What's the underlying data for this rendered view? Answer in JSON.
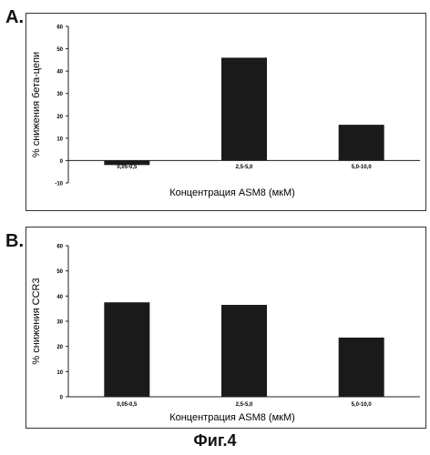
{
  "figure": {
    "caption": "Фиг.4"
  },
  "chart_data": [
    {
      "type": "bar",
      "panel": "A.",
      "title": "",
      "ylabel": "% снижения бета-цепи",
      "xlabel": "Концентрация ASM8 (мкМ)",
      "categories": [
        "0,05-0,5",
        "2,5-5,0",
        "5,0-10,0"
      ],
      "values": [
        -2,
        46,
        16
      ],
      "ylim": [
        -10,
        60
      ],
      "yticks": [
        -10,
        0,
        10,
        20,
        30,
        40,
        50,
        60
      ],
      "grid": false,
      "legend": "none",
      "colors": {
        "bar": "#1a1a1a"
      }
    },
    {
      "type": "bar",
      "panel": "B.",
      "title": "",
      "ylabel": "% снижения CCR3",
      "xlabel": "Концентрация ASM8 (мкМ)",
      "categories": [
        "0,05-0,5",
        "2,5-5,0",
        "5,0-10,0"
      ],
      "values": [
        37.5,
        36.5,
        23.5
      ],
      "ylim": [
        0,
        60
      ],
      "yticks": [
        0,
        10,
        20,
        30,
        40,
        50,
        60
      ],
      "grid": false,
      "legend": "none",
      "colors": {
        "bar": "#1a1a1a"
      }
    }
  ]
}
